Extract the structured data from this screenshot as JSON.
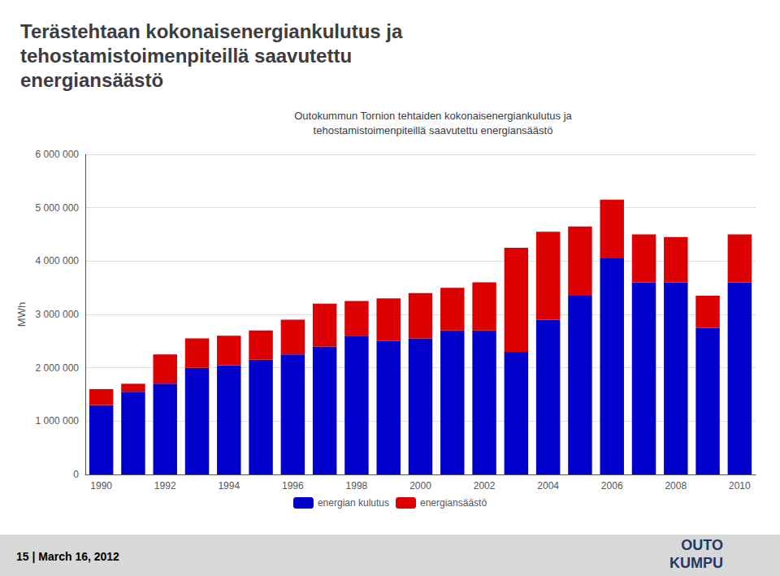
{
  "chart_data": {
    "type": "bar",
    "title": "Terästehtaan kokonaisenergiankulutus ja\ntehostamistoimenpiteillä saavutettu\nenergiansäästö",
    "subtitle": "Outokummun Tornion tehtaiden kokonaisenergiankulutus ja\ntehostamistoimenpiteillä saavutettu energiansäästö",
    "y_label": "MWh",
    "categories": [
      "1990",
      null,
      "1992",
      null,
      "1994",
      null,
      "1996",
      null,
      "1998",
      null,
      "2000",
      null,
      "2002",
      null,
      "2004",
      null,
      "2006",
      null,
      "2008",
      null,
      "2010"
    ],
    "series": [
      {
        "name": "energian kulutus",
        "color": "#0000cd",
        "values": [
          1300000,
          1550000,
          1700000,
          2000000,
          2050000,
          2150000,
          2250000,
          2400000,
          2600000,
          2500000,
          2550000,
          2700000,
          2700000,
          2300000,
          2900000,
          3350000,
          4050000,
          3600000,
          3600000,
          2750000,
          3600000
        ]
      },
      {
        "name": "energiansäästö",
        "color": "#dd0000",
        "values": [
          300000,
          150000,
          550000,
          550000,
          550000,
          550000,
          650000,
          800000,
          650000,
          800000,
          850000,
          800000,
          900000,
          1950000,
          1650000,
          1300000,
          1100000,
          900000,
          850000,
          600000,
          900000
        ]
      }
    ],
    "stacked": true,
    "ylim": [
      0,
      6000000
    ],
    "yticks": [
      0,
      {
        "value": 1000000,
        "label": "1 000 000"
      },
      {
        "value": 2000000,
        "label": "2 000 000"
      },
      {
        "value": 3000000,
        "label": "3 000 000"
      },
      {
        "value": 4000000,
        "label": "4 000 000"
      },
      {
        "value": 5000000,
        "label": "5 000 000"
      },
      {
        "value": 6000000,
        "label": "6 000 000"
      }
    ],
    "grid": true,
    "legend": "bottom",
    "annotations": [
      "15 | March 16, 2012",
      "OUTO",
      "KUMPU"
    ]
  }
}
